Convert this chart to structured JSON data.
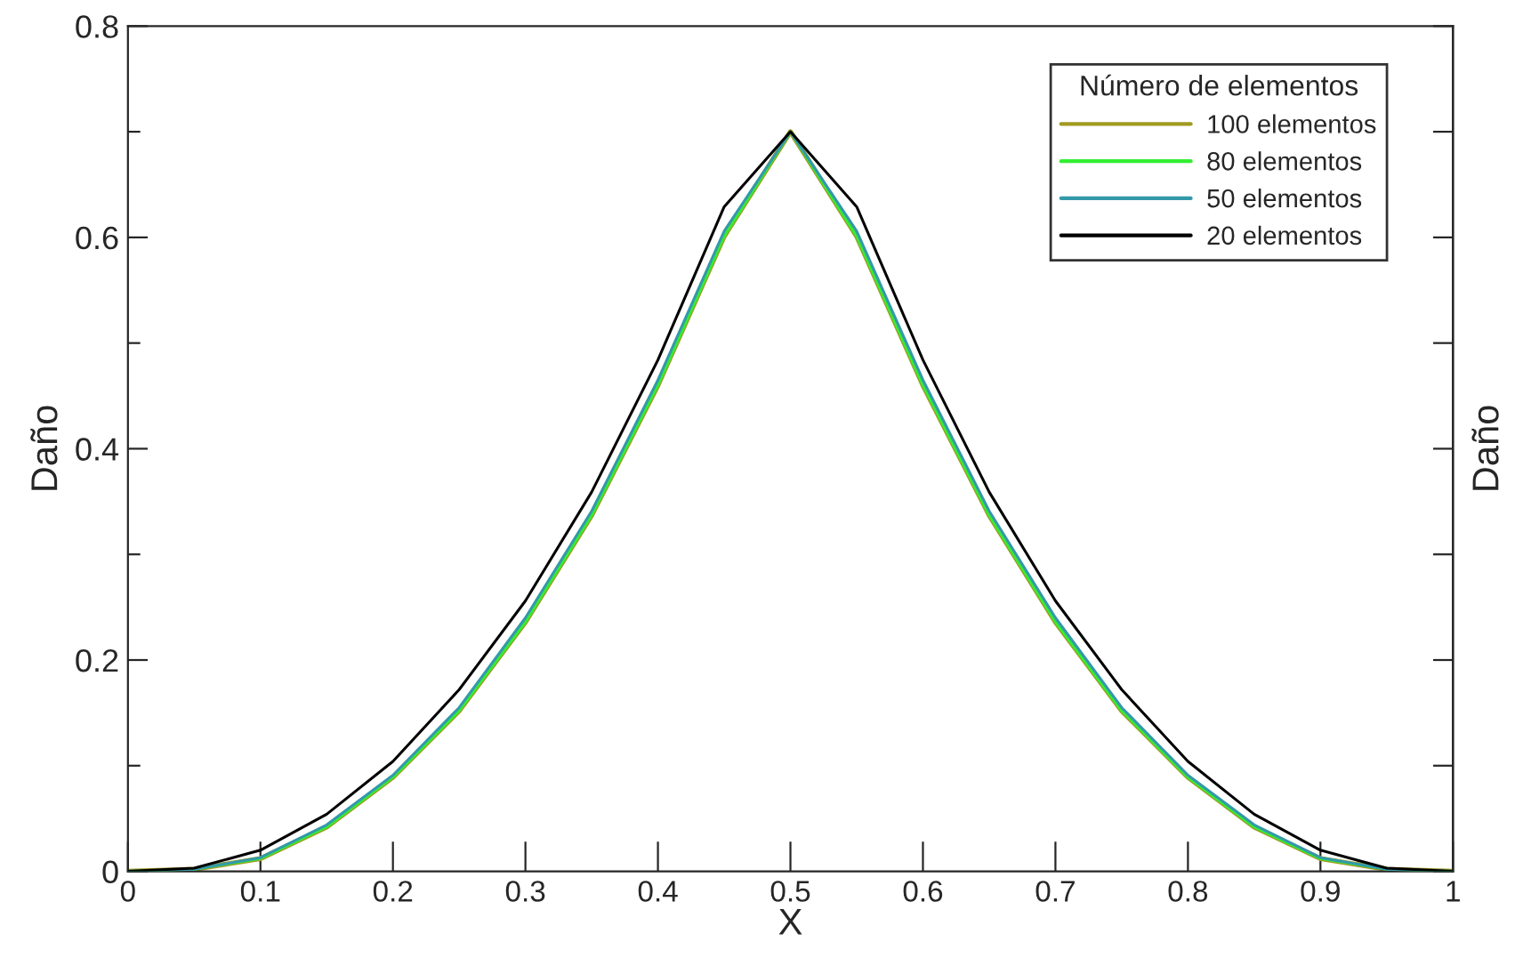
{
  "chart_data": {
    "type": "line",
    "xlabel": "X",
    "ylabel": "Daño",
    "y2label": "Daño",
    "legend_title": "Número de elementos",
    "legend": "top right",
    "grid": false,
    "xlim": [
      0,
      1
    ],
    "ylim": [
      0,
      0.8
    ],
    "xticks": [
      0,
      0.1,
      0.2,
      0.3,
      0.4,
      0.5,
      0.6,
      0.7,
      0.8,
      0.9,
      1
    ],
    "yticks": [
      0,
      {
        "value": 0.1,
        "label": null
      },
      0.2,
      {
        "value": 0.3,
        "label": null
      },
      0.4,
      {
        "value": 0.5,
        "label": null
      },
      0.6,
      {
        "value": 0.7,
        "label": null
      },
      0.8
    ],
    "x": [
      0,
      0.05,
      0.1,
      0.15,
      0.2,
      0.25,
      0.3,
      0.35,
      0.4,
      0.45,
      0.5,
      0.55,
      0.6,
      0.65,
      0.7,
      0.75,
      0.8,
      0.85,
      0.9,
      0.95,
      1
    ],
    "series": [
      {
        "name": "100 elementos",
        "color": "#a09a20",
        "values": [
          0,
          0.002,
          0.012,
          0.042,
          0.089,
          0.152,
          0.236,
          0.337,
          0.46,
          0.601,
          0.7,
          0.601,
          0.46,
          0.337,
          0.236,
          0.152,
          0.089,
          0.042,
          0.012,
          0.002,
          0
        ]
      },
      {
        "name": "80 elementos",
        "color": "#33ee33",
        "values": [
          0,
          0.002,
          0.012,
          0.042,
          0.089,
          0.152,
          0.236,
          0.337,
          0.46,
          0.601,
          0.7,
          0.601,
          0.46,
          0.337,
          0.236,
          0.152,
          0.089,
          0.042,
          0.012,
          0.002,
          0
        ]
      },
      {
        "name": "50 elementos",
        "color": "#3399aa",
        "values": [
          0,
          0.002,
          0.013,
          0.044,
          0.091,
          0.155,
          0.24,
          0.341,
          0.465,
          0.606,
          0.7,
          0.606,
          0.465,
          0.341,
          0.24,
          0.155,
          0.091,
          0.044,
          0.013,
          0.002,
          0
        ]
      },
      {
        "name": "20 elementos",
        "color": "#000000",
        "values": [
          0,
          0.003,
          0.02,
          0.054,
          0.104,
          0.172,
          0.256,
          0.359,
          0.484,
          0.629,
          0.7,
          0.629,
          0.484,
          0.359,
          0.256,
          0.172,
          0.104,
          0.054,
          0.02,
          0.003,
          0
        ]
      }
    ]
  }
}
